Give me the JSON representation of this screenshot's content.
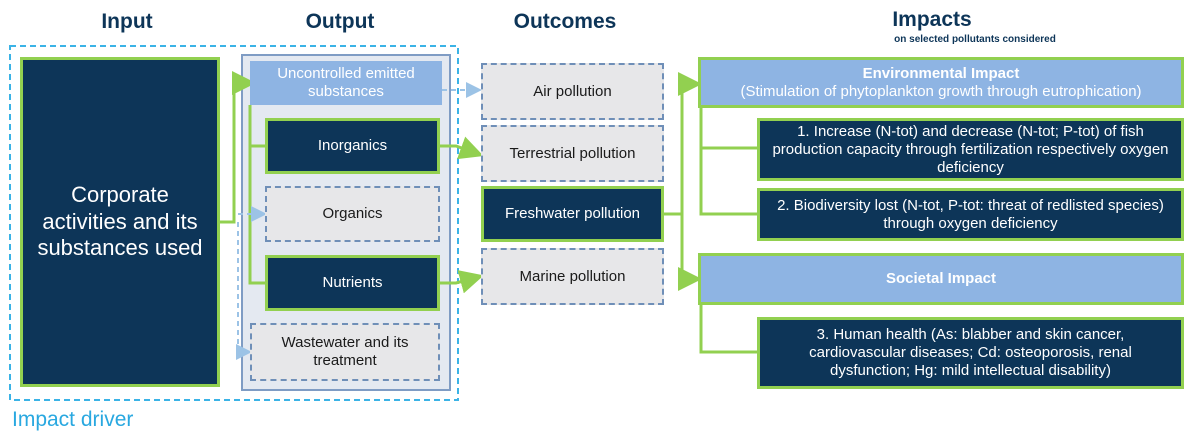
{
  "headers": {
    "input": "Input",
    "output": "Output",
    "outcomes": "Outcomes",
    "impacts": "Impacts",
    "impacts_subtitle": "on selected pollutants considered"
  },
  "input": {
    "label": "Corporate activities and its substances used"
  },
  "output": {
    "items": [
      "Uncontrolled emitted substances",
      "Inorganics",
      "Organics",
      "Nutrients",
      "Wastewater and its treatment"
    ]
  },
  "outcomes": {
    "items": [
      "Air pollution",
      "Terrestrial pollution",
      "Freshwater pollution",
      "Marine pollution"
    ]
  },
  "impacts": {
    "environmental": {
      "title": "Environmental Impact",
      "subtitle": "(Stimulation of phytoplankton growth through eutrophication)",
      "items": [
        "1. Increase (N-tot) and decrease (N-tot; P-tot) of fish production capacity through fertilization respectively oxygen deficiency",
        "2. Biodiversity lost (N-tot, P-tot: threat of redlisted species) through oxygen deficiency"
      ]
    },
    "societal": {
      "title": "Societal Impact",
      "items": [
        "3. Human health (As: blabber and skin cancer, cardiovascular diseases; Cd: osteoporosis, renal dysfunction; Hg: mild intellectual disability)"
      ]
    }
  },
  "footer": {
    "label": "Impact driver"
  }
}
